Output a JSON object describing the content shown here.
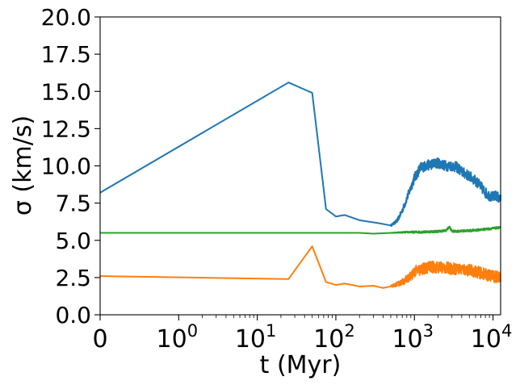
{
  "chart_data": {
    "type": "line",
    "title": "",
    "xlabel": "t (Myr)",
    "ylabel": "σ (km/s)",
    "xscale": "symlog",
    "xlim": [
      0,
      12500
    ],
    "ylim": [
      0,
      20
    ],
    "grid": false,
    "x_ticks": [
      {
        "value": 0,
        "label": "0"
      },
      {
        "value": 1,
        "label": "10",
        "exp": "0"
      },
      {
        "value": 10,
        "label": "10",
        "exp": "1"
      },
      {
        "value": 100,
        "label": "10",
        "exp": "2"
      },
      {
        "value": 1000,
        "label": "10",
        "exp": "3"
      },
      {
        "value": 10000,
        "label": "10",
        "exp": "4"
      }
    ],
    "y_ticks": [
      {
        "value": 0,
        "label": "0.0"
      },
      {
        "value": 2.5,
        "label": "2.5"
      },
      {
        "value": 5,
        "label": "5.0"
      },
      {
        "value": 7.5,
        "label": "7.5"
      },
      {
        "value": 10,
        "label": "10.0"
      },
      {
        "value": 12.5,
        "label": "12.5"
      },
      {
        "value": 15,
        "label": "15.0"
      },
      {
        "value": 17.5,
        "label": "17.5"
      },
      {
        "value": 20,
        "label": "20.0"
      }
    ],
    "series": [
      {
        "color": "#1f77b4",
        "points": [
          [
            0,
            8.2
          ],
          [
            25,
            15.6
          ],
          [
            50,
            14.9
          ],
          [
            75,
            7.1
          ],
          [
            100,
            6.6
          ],
          [
            130,
            6.7
          ],
          [
            200,
            6.35
          ],
          [
            350,
            6.15
          ],
          [
            500,
            6.0
          ],
          [
            600,
            6.3
          ],
          [
            700,
            7.0
          ],
          [
            850,
            8.2
          ],
          [
            1000,
            9.2
          ],
          [
            1200,
            9.9
          ],
          [
            1600,
            10.1
          ],
          [
            2000,
            10.2
          ],
          [
            2500,
            10.0
          ],
          [
            3000,
            10.0
          ],
          [
            3500,
            9.9
          ],
          [
            4000,
            9.6
          ],
          [
            5000,
            9.3
          ],
          [
            6000,
            9.0
          ],
          [
            7000,
            8.6
          ],
          [
            8000,
            8.2
          ],
          [
            9000,
            8.0
          ],
          [
            10000,
            7.9
          ],
          [
            11000,
            8.0
          ],
          [
            12000,
            7.8
          ]
        ],
        "noise": 0.35
      },
      {
        "color": "#2ca02c",
        "points": [
          [
            0,
            5.5
          ],
          [
            50,
            5.5
          ],
          [
            100,
            5.5
          ],
          [
            200,
            5.5
          ],
          [
            300,
            5.45
          ],
          [
            500,
            5.5
          ],
          [
            800,
            5.55
          ],
          [
            1000,
            5.55
          ],
          [
            2000,
            5.6
          ],
          [
            2500,
            5.65
          ],
          [
            2800,
            5.9
          ],
          [
            3000,
            5.6
          ],
          [
            5000,
            5.65
          ],
          [
            8000,
            5.75
          ],
          [
            12000,
            5.85
          ]
        ],
        "noise": 0.07
      },
      {
        "color": "#ff7f0e",
        "points": [
          [
            0,
            2.6
          ],
          [
            25,
            2.4
          ],
          [
            50,
            4.6
          ],
          [
            75,
            2.2
          ],
          [
            100,
            2.0
          ],
          [
            130,
            2.1
          ],
          [
            200,
            1.9
          ],
          [
            300,
            1.95
          ],
          [
            400,
            1.8
          ],
          [
            500,
            1.9
          ],
          [
            700,
            2.2
          ],
          [
            900,
            2.6
          ],
          [
            1000,
            2.9
          ],
          [
            1500,
            3.2
          ],
          [
            2000,
            3.2
          ],
          [
            3000,
            3.1
          ],
          [
            5000,
            3.0
          ],
          [
            8000,
            2.7
          ],
          [
            10000,
            2.6
          ],
          [
            12000,
            2.5
          ]
        ],
        "noise": 0.4
      }
    ]
  }
}
